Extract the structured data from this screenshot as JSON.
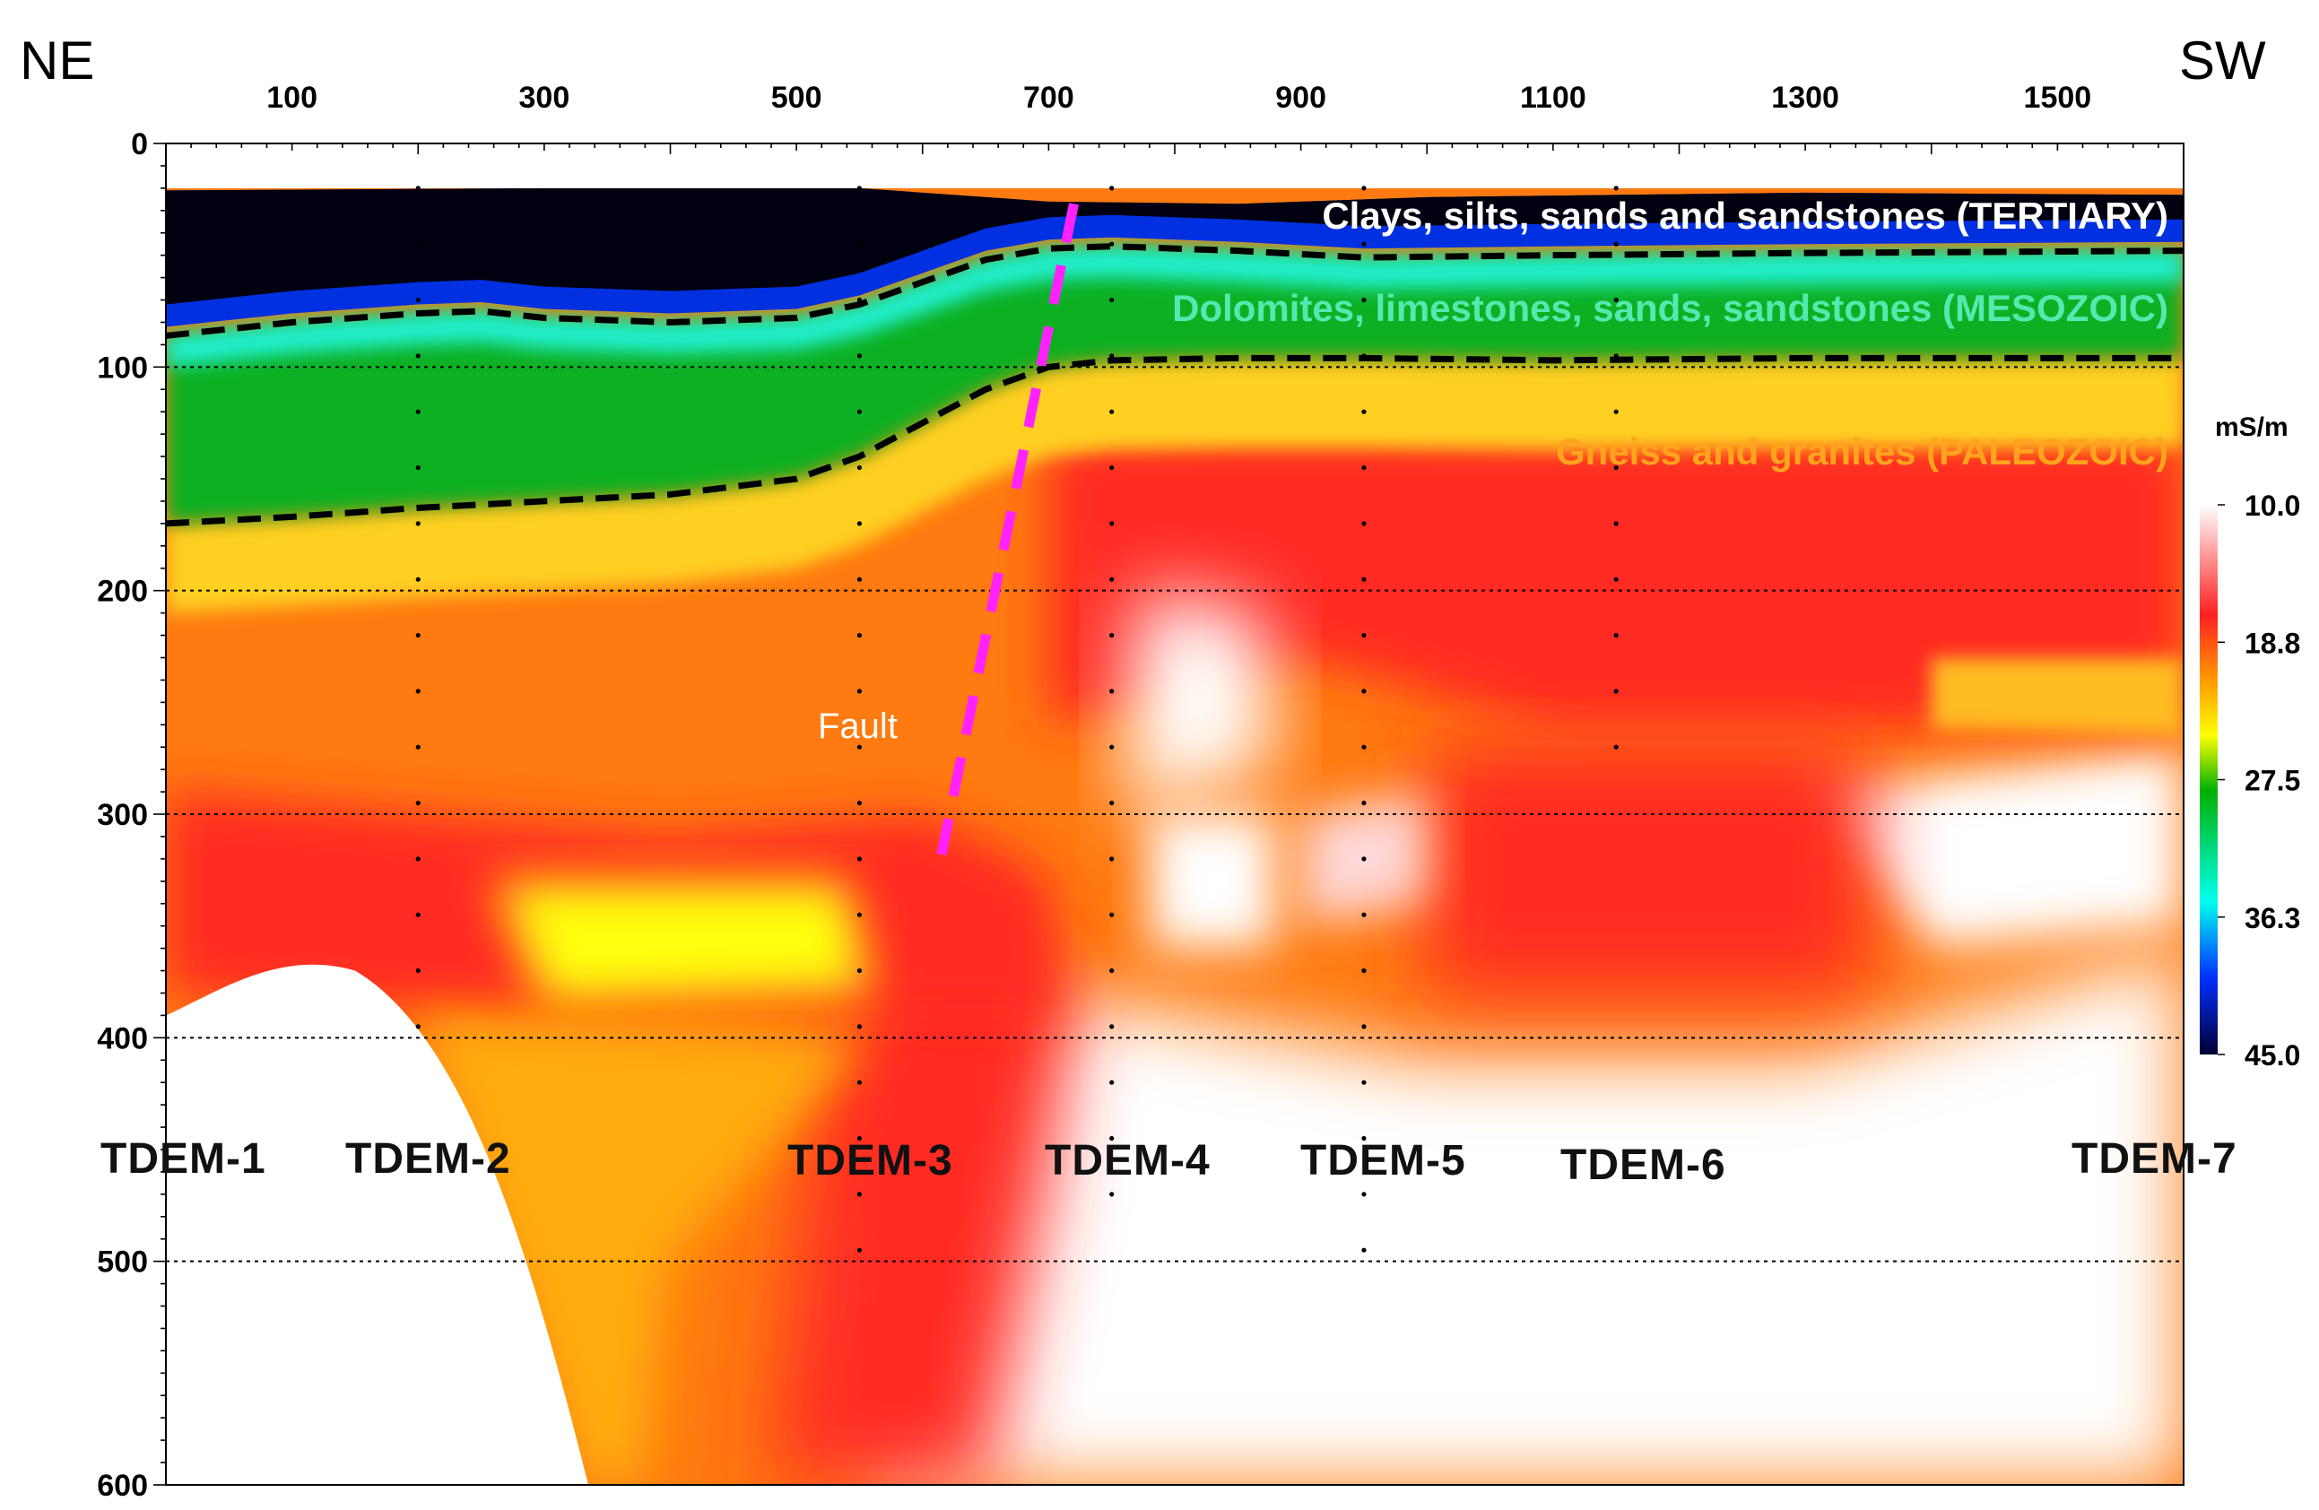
{
  "chart_data": {
    "type": "heatmap",
    "title": "",
    "direction_labels": {
      "left": "NE",
      "right": "SW"
    },
    "xlabel": "",
    "ylabel": "",
    "xlim": [
      0,
      1600
    ],
    "ylim": [
      600,
      0
    ],
    "x_ticks": [
      100,
      300,
      500,
      700,
      900,
      1100,
      1300,
      1500
    ],
    "y_ticks": [
      0,
      100,
      200,
      300,
      400,
      500,
      600
    ],
    "depth_gridlines": [
      100,
      200,
      300,
      400,
      500
    ],
    "colorbar": {
      "unit": "mS/m",
      "ticks": [
        "10.0",
        "18.8",
        "27.5",
        "36.3",
        "45.0"
      ],
      "min": 10.0,
      "max": 45.0,
      "colors": [
        "#ffffff",
        "#ff2020",
        "#ffa500",
        "#ffff00",
        "#00b000",
        "#00ffee",
        "#0030ff",
        "#000033"
      ]
    },
    "stations": [
      {
        "name": "TDEM-1",
        "x": 0
      },
      {
        "name": "TDEM-2",
        "x": 200
      },
      {
        "name": "TDEM-3",
        "x": 550
      },
      {
        "name": "TDEM-4",
        "x": 750
      },
      {
        "name": "TDEM-5",
        "x": 950
      },
      {
        "name": "TDEM-6",
        "x": 1150
      },
      {
        "name": "TDEM-7",
        "x": 1600
      }
    ],
    "layers": [
      {
        "name": "Clays, silts, sands and sandstones (TERTIARY)",
        "color": "#ffffff"
      },
      {
        "name": "Dolomites, limestones, sands, sandstones (MESOZOIC)",
        "color": "#55e8b0"
      },
      {
        "name": "Gneiss and granites (PALEOZOIC)",
        "color": "#ffa41c"
      }
    ],
    "boundaries": [
      {
        "name": "top-of-mesozoic",
        "x": [
          0,
          100,
          200,
          250,
          300,
          400,
          500,
          550,
          600,
          650,
          700,
          750,
          850,
          950,
          1100,
          1300,
          1600
        ],
        "y": [
          86,
          80,
          76,
          75,
          78,
          80,
          78,
          72,
          62,
          52,
          47,
          46,
          48,
          51,
          50,
          49,
          48
        ]
      },
      {
        "name": "top-of-paleozoic",
        "x": [
          0,
          100,
          200,
          300,
          400,
          500,
          550,
          600,
          650,
          700,
          750,
          850,
          950,
          1100,
          1300,
          1600
        ],
        "y": [
          170,
          167,
          163,
          160,
          157,
          150,
          140,
          125,
          110,
          100,
          97,
          96,
          96,
          97,
          96,
          96
        ]
      }
    ],
    "fault": {
      "label": "Fault",
      "x": [
        720,
        615
      ],
      "y": [
        27,
        318
      ],
      "color": "#ff22ff"
    }
  }
}
